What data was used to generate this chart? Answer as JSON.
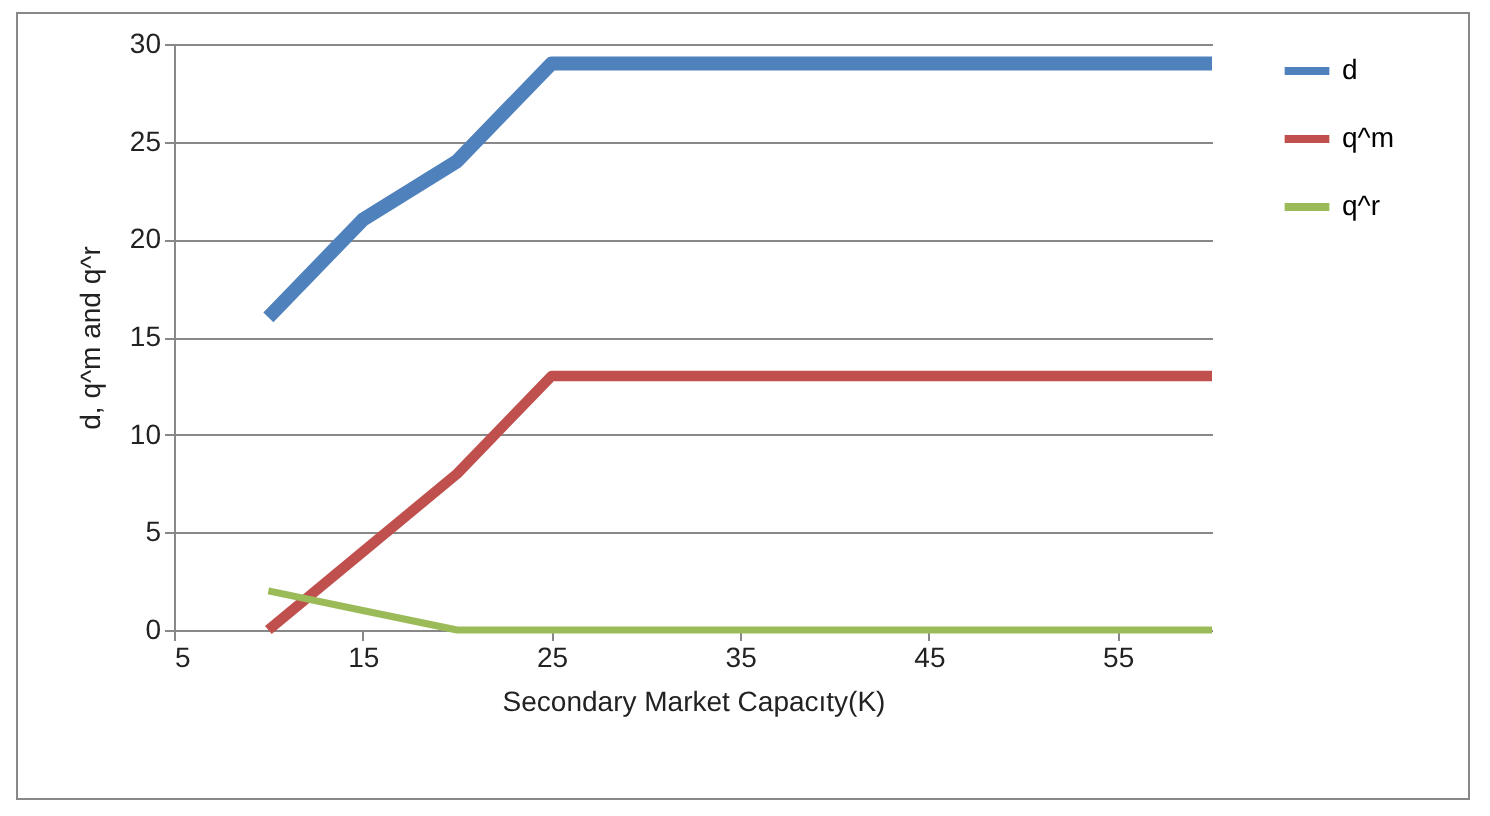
{
  "chart_data": {
    "type": "line",
    "xlabel": "Secondary Market Capacıty(K)",
    "ylabel": "d, q^m and q^r",
    "x": [
      10,
      15,
      20,
      25,
      30,
      35,
      40,
      45,
      50,
      55,
      60
    ],
    "series": [
      {
        "name": "d",
        "color": "#4f81bd",
        "values": [
          16,
          21,
          24,
          29,
          29,
          29,
          29,
          29,
          29,
          29,
          29
        ]
      },
      {
        "name": "q^m",
        "color": "#c0504d",
        "values": [
          0,
          4,
          8,
          13,
          13,
          13,
          13,
          13,
          13,
          13,
          13
        ]
      },
      {
        "name": "q^r",
        "color": "#9bbb59",
        "values": [
          2,
          1,
          0,
          0,
          0,
          0,
          0,
          0,
          0,
          0,
          0
        ]
      }
    ],
    "xlim": [
      5,
      60
    ],
    "xticks": [
      5,
      15,
      25,
      35,
      45,
      55
    ],
    "ylim": [
      0,
      30
    ],
    "yticks": [
      0,
      5,
      10,
      15,
      20,
      25,
      30
    ],
    "grid": "y",
    "legend": "right",
    "marker": "none",
    "line_style": "solid"
  }
}
